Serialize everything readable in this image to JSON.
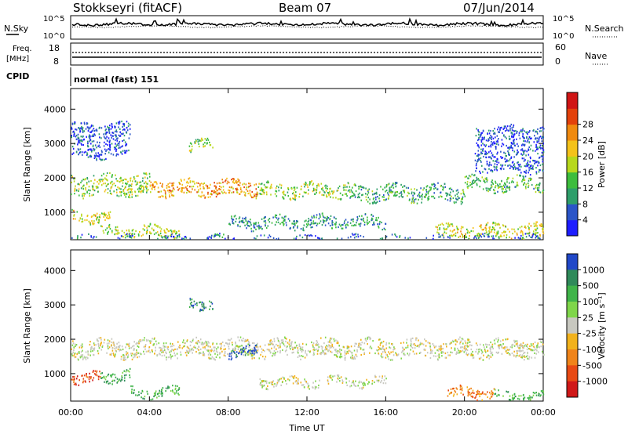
{
  "header": {
    "title": "Stokkseyri (fitACF)",
    "beam": "Beam 07",
    "date": "07/Jun/2014"
  },
  "sky_panel": {
    "left_label": "N.Sky",
    "right_label": "N.Search",
    "ticks": [
      "10^5",
      "10^0"
    ]
  },
  "freq_panel": {
    "left_label_1": "Freq.",
    "left_label_2": "[MHz]",
    "left_ticks": [
      "18",
      "8"
    ],
    "right_ticks": [
      "60",
      "0"
    ],
    "right_label": "Nave"
  },
  "cpid": {
    "label": "CPID",
    "value": "normal (fast) 151"
  },
  "chart_data": [
    {
      "type": "heatmap",
      "name": "power",
      "ylabel": "Slant Range [km]",
      "xlabel": "",
      "x_ticks": [
        "00:00",
        "04:00",
        "08:00",
        "12:00",
        "16:00",
        "20:00",
        "00:00"
      ],
      "x_range_hours": [
        0,
        24
      ],
      "y_ticks": [
        "1000",
        "2000",
        "3000",
        "4000"
      ],
      "y_range": [
        200,
        4600
      ],
      "colorbar": {
        "label": "Power [dB]",
        "ticks": [
          "4",
          "8",
          "12",
          "16",
          "20",
          "24",
          "28"
        ],
        "range": [
          0,
          30
        ],
        "colors": [
          "#1d1dff",
          "#2a55c8",
          "#2e9e6a",
          "#3dbd3d",
          "#b7d81c",
          "#f4c21a",
          "#f08a0f",
          "#e3410b",
          "#d01515"
        ]
      },
      "bands": [
        {
          "t0": 0.0,
          "t1": 4.0,
          "r0": 1500,
          "r1": 2100,
          "level": 0.45
        },
        {
          "t0": 4.0,
          "t1": 9.5,
          "r0": 1500,
          "r1": 1950,
          "level": 0.7
        },
        {
          "t0": 9.5,
          "t1": 14.0,
          "r0": 1450,
          "r1": 1850,
          "level": 0.45
        },
        {
          "t0": 14.0,
          "t1": 20.0,
          "r0": 1350,
          "r1": 1800,
          "level": 0.3
        },
        {
          "t0": 20.0,
          "t1": 24.0,
          "r0": 1650,
          "r1": 2050,
          "level": 0.35
        },
        {
          "t0": 0.0,
          "t1": 2.0,
          "r0": 750,
          "r1": 1050,
          "level": 0.55
        },
        {
          "t0": 1.5,
          "t1": 5.5,
          "r0": 300,
          "r1": 600,
          "level": 0.5
        },
        {
          "t0": 8.0,
          "t1": 16.0,
          "r0": 550,
          "r1": 900,
          "level": 0.25
        },
        {
          "t0": 18.5,
          "t1": 24.0,
          "r0": 250,
          "r1": 650,
          "level": 0.55
        },
        {
          "t0": 0.0,
          "t1": 24.0,
          "r0": 200,
          "r1": 320,
          "level": 0.15
        },
        {
          "t0": 0.0,
          "t1": 3.0,
          "r0": 2600,
          "r1": 3600,
          "level": 0.08
        },
        {
          "t0": 6.0,
          "t1": 7.2,
          "r0": 2800,
          "r1": 3100,
          "level": 0.45
        },
        {
          "t0": 20.5,
          "t1": 24.0,
          "r0": 2200,
          "r1": 3500,
          "level": 0.1
        }
      ]
    },
    {
      "type": "heatmap",
      "name": "velocity",
      "ylabel": "Slant Range [km]",
      "xlabel": "Time UT",
      "x_ticks": [
        "00:00",
        "04:00",
        "08:00",
        "12:00",
        "16:00",
        "20:00",
        "00:00"
      ],
      "x_range_hours": [
        0,
        24
      ],
      "y_ticks": [
        "1000",
        "2000",
        "3000",
        "4000"
      ],
      "y_range": [
        200,
        4600
      ],
      "colorbar": {
        "label": "Velocity [m s⁻¹]",
        "ticks": [
          "1000",
          "500",
          "100",
          "25",
          "-25",
          "-100",
          "-500",
          "-1000"
        ],
        "range": [
          -1200,
          1200
        ],
        "colors": [
          "#2048c8",
          "#2f8a5a",
          "#3fb449",
          "#7fd64a",
          "#c8c8c0",
          "#f2b21c",
          "#f0841a",
          "#e84a14",
          "#d01818"
        ]
      },
      "bands": [
        {
          "t0": 0.0,
          "t1": 24.0,
          "r0": 1500,
          "r1": 2000,
          "level": 0.0
        },
        {
          "t0": 0.0,
          "t1": 1.5,
          "r0": 750,
          "r1": 1050,
          "level": -0.8
        },
        {
          "t0": 1.5,
          "t1": 3.0,
          "r0": 800,
          "r1": 1100,
          "level": 0.5
        },
        {
          "t0": 3.0,
          "t1": 5.5,
          "r0": 350,
          "r1": 600,
          "level": 0.6
        },
        {
          "t0": 8.0,
          "t1": 9.5,
          "r0": 1500,
          "r1": 1800,
          "level": 0.9
        },
        {
          "t0": 9.5,
          "t1": 16.0,
          "r0": 650,
          "r1": 900,
          "level": 0.0
        },
        {
          "t0": 19.0,
          "t1": 21.5,
          "r0": 300,
          "r1": 600,
          "level": -0.6
        },
        {
          "t0": 21.5,
          "t1": 24.0,
          "r0": 250,
          "r1": 500,
          "level": 0.4
        },
        {
          "t0": 6.0,
          "t1": 7.2,
          "r0": 2900,
          "r1": 3200,
          "level": 0.8
        }
      ]
    }
  ],
  "time_label": "Time UT"
}
